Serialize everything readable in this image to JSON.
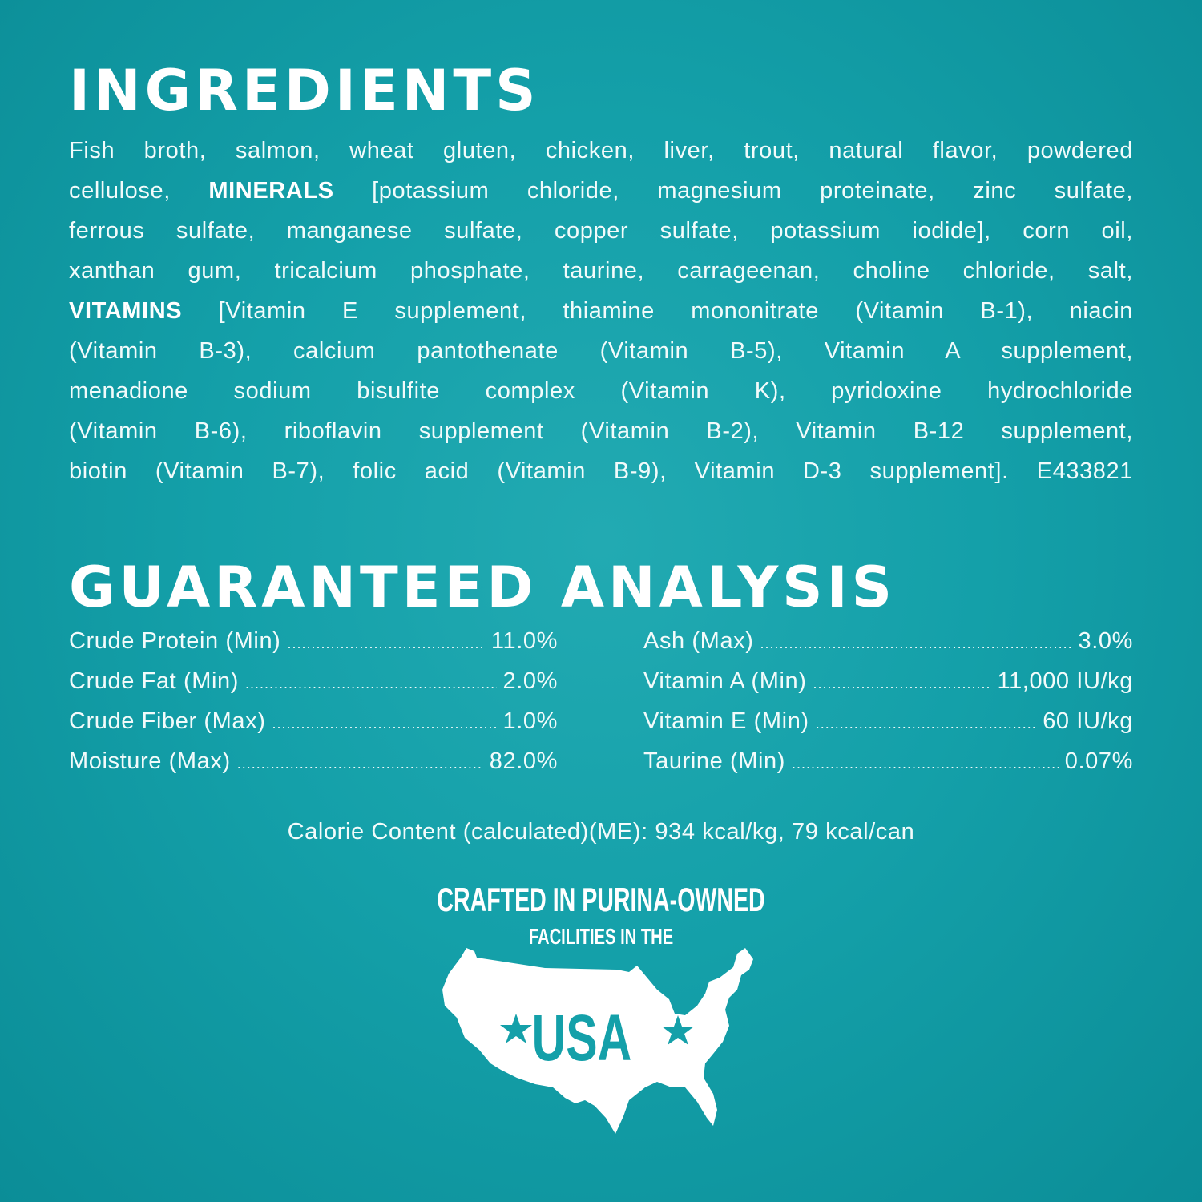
{
  "ingredients": {
    "title": "INGREDIENTS",
    "lines": [
      {
        "a": "Fish broth, salmon, wheat gluten, chicken, liver, trout, natural flavor, powdered"
      },
      {
        "a": "cellulose,",
        "b": "MINERALS",
        "c": "[potassium chloride, magnesium proteinate, zinc sulfate,"
      },
      {
        "a": "ferrous sulfate, manganese sulfate, copper sulfate, potassium iodide], corn oil,"
      },
      {
        "a": "xanthan gum, tricalcium phosphate, taurine, carrageenan, choline chloride, salt,"
      },
      {
        "b": "VITAMINS",
        "c": "[Vitamin E supplement, thiamine mononitrate (Vitamin B-1), niacin"
      },
      {
        "a": "(Vitamin B-3), calcium pantothenate (Vitamin B-5), Vitamin A supplement,"
      },
      {
        "a": "menadione sodium bisulfite complex (Vitamin K), pyridoxine hydrochloride"
      },
      {
        "a": "(Vitamin B-6), riboflavin supplement (Vitamin B-2), Vitamin B-12 supplement,"
      },
      {
        "a": "biotin (Vitamin B-7), folic acid (Vitamin B-9), Vitamin D-3 supplement]. E433821"
      }
    ]
  },
  "analysis": {
    "title": "GUARANTEED ANALYSIS",
    "left": [
      {
        "label": "Crude Protein (Min)",
        "value": "11.0%"
      },
      {
        "label": "Crude Fat (Min)",
        "value": "2.0%"
      },
      {
        "label": "Crude Fiber (Max)",
        "value": "1.0%"
      },
      {
        "label": "Moisture (Max)",
        "value": "82.0%"
      }
    ],
    "right": [
      {
        "label": "Ash (Max)",
        "value": "3.0%"
      },
      {
        "label": "Vitamin A (Min)",
        "value": "11,000 IU/kg"
      },
      {
        "label": "Vitamin E (Min)",
        "value": "60 IU/kg"
      },
      {
        "label": "Taurine (Min)",
        "value": "0.07%"
      }
    ],
    "calorie": "Calorie Content (calculated)(ME): 934 kcal/kg, 79 kcal/can"
  },
  "badge": {
    "line1": "CRAFTED IN PURINA-OWNED",
    "line2": "FACILITIES IN THE",
    "usa": "USA",
    "icon": "usa-map-icon"
  },
  "colors": {
    "background": "#14a0a9",
    "text": "#ffffff"
  }
}
